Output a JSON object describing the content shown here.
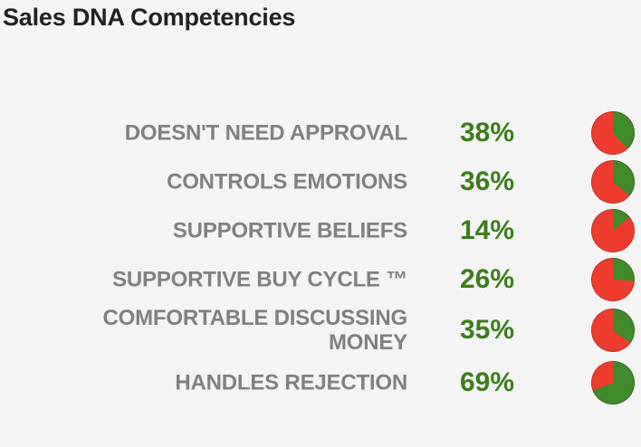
{
  "header": {
    "title": "Sales DNA Competencies"
  },
  "colors": {
    "positive": "#3f8a2a",
    "negative": "#ef3b2e",
    "percent_text": "#3d7d1c",
    "label_text": "#808080"
  },
  "chart_data": {
    "type": "pie",
    "title": "Sales DNA Competencies",
    "categories": [
      "DOESN'T NEED APPROVAL",
      "CONTROLS EMOTIONS",
      "SUPPORTIVE BELIEFS",
      "SUPPORTIVE BUY CYCLE ™",
      "COMFORTABLE DISCUSSING MONEY",
      "HANDLES REJECTION"
    ],
    "values": [
      38,
      36,
      14,
      26,
      35,
      69
    ],
    "value_labels": [
      "38%",
      "36%",
      "14%",
      "26%",
      "35%",
      "69%"
    ],
    "unit": "%"
  }
}
